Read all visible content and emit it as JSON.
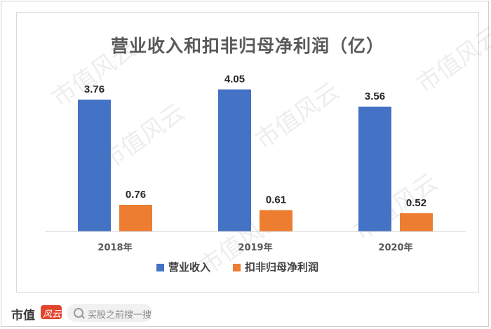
{
  "chart_data": {
    "type": "bar",
    "title": "营业收入和扣非归母净利润（亿）",
    "categories": [
      "2018年",
      "2019年",
      "2020年"
    ],
    "series": [
      {
        "name": "营业收入",
        "values": [
          3.76,
          4.05,
          3.56
        ],
        "color": "#4472C4"
      },
      {
        "name": "扣非归母净利润",
        "values": [
          0.76,
          0.61,
          0.52
        ],
        "color": "#ED7D31"
      }
    ],
    "ylim": [
      0,
      4.3
    ],
    "grid": false,
    "legend_position": "bottom",
    "data_labels": [
      "3.76",
      "4.05",
      "3.56",
      "0.76",
      "0.61",
      "0.52"
    ]
  },
  "watermark": "市值风云",
  "footer": {
    "brand": "市值",
    "brand_badge_text": "风云",
    "search_placeholder": "买股之前搜一搜"
  }
}
